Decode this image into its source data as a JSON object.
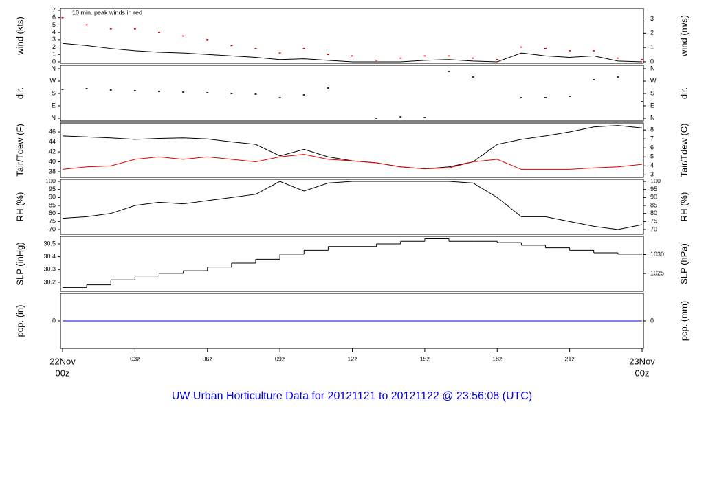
{
  "title": "UW Urban Horticulture Data for 20121121  to  20121122 @ 23:56:08  (UTC)",
  "x_axis": {
    "xlim": [
      0,
      24
    ],
    "edge_color": "#e00000",
    "xticks": [
      {
        "value": 0,
        "label": "22Nov",
        "sublabel": "00z"
      },
      {
        "value": 3,
        "label": "03z"
      },
      {
        "value": 6,
        "label": "06z"
      },
      {
        "value": 9,
        "label": "09z"
      },
      {
        "value": 12,
        "label": "12z"
      },
      {
        "value": 15,
        "label": "15z"
      },
      {
        "value": 18,
        "label": "18z"
      },
      {
        "value": 21,
        "label": "21z"
      },
      {
        "value": 24,
        "label": "23Nov",
        "sublabel": "00z"
      }
    ]
  },
  "chart_data": [
    {
      "type": "line",
      "ylabel": "wind (kts)",
      "y2label": "wind (m/s)",
      "annotation": "10 min. peak winds in red",
      "annotation_color": "#e00000",
      "ylim": [
        -0.19,
        7.28
      ],
      "yticks": [
        0,
        1,
        2,
        3,
        4,
        5,
        6,
        7
      ],
      "y2lim": [
        -0.098,
        3.745
      ],
      "y2ticks": [
        0,
        1,
        2,
        3
      ],
      "x": [
        0,
        1,
        2,
        3,
        4,
        5,
        6,
        7,
        8,
        9,
        10,
        11,
        12,
        13,
        14,
        15,
        16,
        17,
        18,
        19,
        20,
        21,
        22,
        23,
        24
      ],
      "series": [
        {
          "color": "#000000",
          "style": "line",
          "values": [
            2.5,
            2.2,
            1.8,
            1.5,
            1.3,
            1.2,
            1.0,
            0.8,
            0.6,
            0.3,
            0.4,
            0.2,
            0,
            0,
            0,
            0.2,
            0.3,
            0.1,
            0,
            1.2,
            0.8,
            0.6,
            0.8,
            0.1,
            0
          ]
        },
        {
          "color": "#e00000",
          "style": "points",
          "values": [
            6,
            5,
            4.5,
            4.5,
            4,
            3.5,
            3,
            2.2,
            1.8,
            1.2,
            1.8,
            1,
            0.8,
            0.2,
            0.5,
            0.8,
            0.8,
            0.5,
            0.3,
            2,
            1.8,
            1.5,
            1.5,
            0.5,
            0.3
          ]
        }
      ]
    },
    {
      "type": "scatter",
      "ylabel": "dir.",
      "y2label": "dir.",
      "ylim": [
        -20,
        385
      ],
      "yticks": [
        {
          "value": 0,
          "label": "N"
        },
        {
          "value": 90,
          "label": "E"
        },
        {
          "value": 180,
          "label": "S"
        },
        {
          "value": 270,
          "label": "W"
        },
        {
          "value": 360,
          "label": "N"
        }
      ],
      "y2lim": [
        -20,
        385
      ],
      "y2ticks": [
        {
          "value": 0,
          "label": "N"
        },
        {
          "value": 90,
          "label": "E"
        },
        {
          "value": 180,
          "label": "S"
        },
        {
          "value": 270,
          "label": "W"
        },
        {
          "value": 360,
          "label": "N"
        }
      ],
      "x": [
        0,
        1,
        2,
        3,
        4,
        5,
        6,
        7,
        8,
        9,
        10,
        11,
        12,
        13,
        14,
        15,
        16,
        17,
        18,
        19,
        20,
        21,
        22,
        23,
        24
      ],
      "series": [
        {
          "color": "#000000",
          "style": "points",
          "values": [
            210,
            215,
            205,
            200,
            195,
            190,
            185,
            180,
            175,
            150,
            170,
            220,
            null,
            0,
            10,
            5,
            340,
            300,
            null,
            150,
            150,
            160,
            280,
            300,
            120
          ]
        }
      ]
    },
    {
      "type": "line",
      "ylabel": "Tair/Tdew (F)",
      "y2label": "Tair/Tdew (C)",
      "ylim": [
        36.9,
        47.8
      ],
      "yticks": [
        38,
        40,
        42,
        44,
        46
      ],
      "y2lim": [
        2.72,
        8.78
      ],
      "y2ticks": [
        3,
        4,
        5,
        6,
        7,
        8
      ],
      "x": [
        0,
        1,
        2,
        3,
        4,
        5,
        6,
        7,
        8,
        9,
        10,
        11,
        12,
        13,
        14,
        15,
        16,
        17,
        18,
        19,
        20,
        21,
        22,
        23,
        24
      ],
      "series": [
        {
          "color": "#000000",
          "style": "line",
          "values": [
            45.2,
            45,
            44.8,
            44.5,
            44.7,
            44.8,
            44.6,
            44,
            43.5,
            41.2,
            42.5,
            41,
            40.2,
            39.8,
            39,
            38.6,
            39,
            40,
            43.5,
            44.5,
            45.2,
            46,
            47,
            47.3,
            46.8
          ]
        },
        {
          "color": "#e00000",
          "style": "line",
          "values": [
            38.5,
            39,
            39.2,
            40.5,
            41,
            40.5,
            41,
            40.5,
            40,
            41,
            41.5,
            40.5,
            40.2,
            39.8,
            39,
            38.6,
            38.8,
            40,
            40.5,
            38.5,
            38.5,
            38.5,
            38.8,
            39,
            39.5
          ]
        }
      ]
    },
    {
      "type": "line",
      "ylabel": "RH (%)",
      "y2label": "RH (%)",
      "ylim": [
        67,
        101.3
      ],
      "yticks": [
        70,
        75,
        80,
        85,
        90,
        95,
        100
      ],
      "y2lim": [
        67,
        101.3
      ],
      "y2ticks": [
        70,
        75,
        80,
        85,
        90,
        95,
        100
      ],
      "x": [
        0,
        1,
        2,
        3,
        4,
        5,
        6,
        7,
        8,
        9,
        10,
        11,
        12,
        13,
        14,
        15,
        16,
        17,
        18,
        19,
        20,
        21,
        22,
        23,
        24
      ],
      "series": [
        {
          "color": "#000000",
          "style": "line",
          "values": [
            77,
            78,
            80,
            85,
            87,
            86,
            88,
            90,
            92,
            100,
            94,
            99,
            100,
            100,
            100,
            100,
            100,
            99,
            90,
            78,
            78,
            75,
            72,
            70,
            73
          ]
        }
      ]
    },
    {
      "type": "line",
      "ylabel": "SLP (inHg)",
      "y2label": "SLP (hPa)",
      "ylim": [
        30.13,
        30.559
      ],
      "yticks": [
        30.2,
        30.3,
        30.4,
        30.5
      ],
      "y2lim": [
        1020.3,
        1034.8
      ],
      "y2ticks": [
        1025,
        1030
      ],
      "x": [
        0,
        1,
        2,
        3,
        4,
        5,
        6,
        7,
        8,
        9,
        10,
        11,
        12,
        13,
        14,
        15,
        16,
        17,
        18,
        19,
        20,
        21,
        22,
        23,
        24
      ],
      "series": [
        {
          "color": "#000000",
          "style": "step",
          "values": [
            30.16,
            30.18,
            30.22,
            30.25,
            30.27,
            30.29,
            30.32,
            30.35,
            30.38,
            30.42,
            30.45,
            30.48,
            30.48,
            30.5,
            30.52,
            30.54,
            30.52,
            30.52,
            30.51,
            30.49,
            30.47,
            30.45,
            30.43,
            30.42,
            30.42
          ]
        }
      ]
    },
    {
      "type": "line",
      "ylabel": "pcp. (in)",
      "y2label": "pcp. (mm)",
      "ylim": [
        -1,
        1
      ],
      "yticks": [
        0
      ],
      "y2lim": [
        -25.4,
        25.4
      ],
      "y2ticks": [
        0
      ],
      "x": [
        0,
        1,
        2,
        3,
        4,
        5,
        6,
        7,
        8,
        9,
        10,
        11,
        12,
        13,
        14,
        15,
        16,
        17,
        18,
        19,
        20,
        21,
        22,
        23,
        24
      ],
      "series": [
        {
          "color": "#0000e0",
          "style": "line",
          "values": [
            0,
            0,
            0,
            0,
            0,
            0,
            0,
            0,
            0,
            0,
            0,
            0,
            0,
            0,
            0,
            0,
            0,
            0,
            0,
            0,
            0,
            0,
            0,
            0,
            0
          ]
        }
      ]
    }
  ]
}
